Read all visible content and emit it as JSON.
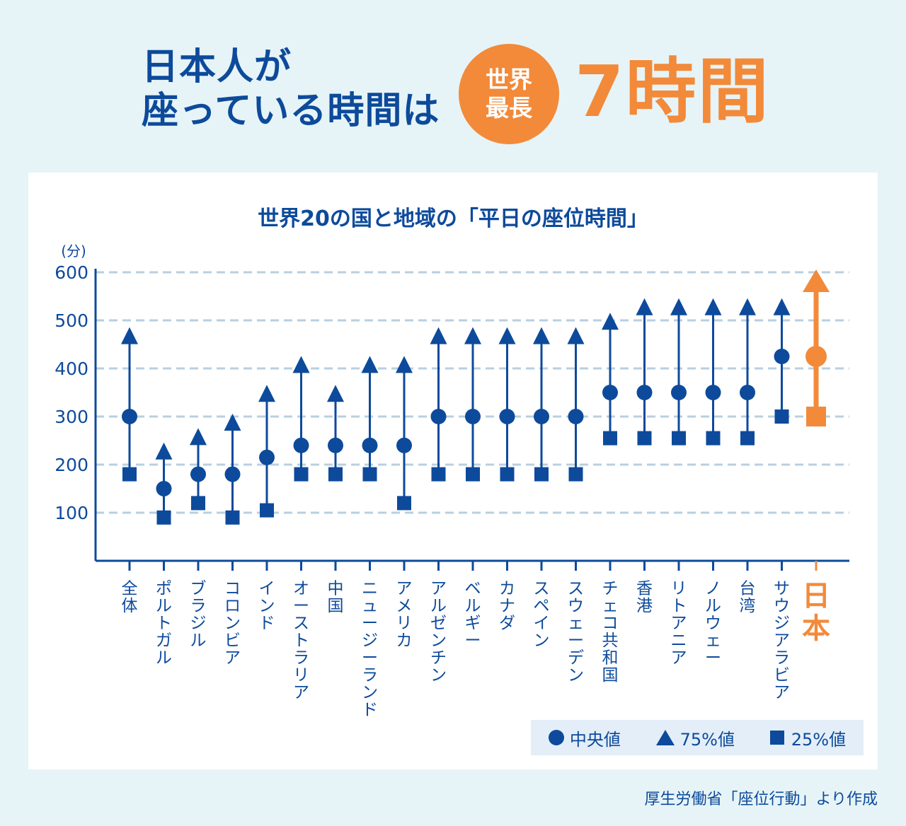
{
  "headline": {
    "line1": "日本人が",
    "line2": "座っている時間は",
    "badge_line1": "世界",
    "badge_line2": "最長",
    "hours": "7時間"
  },
  "colors": {
    "blue": "#0d4a9b",
    "orange": "#f28a3a",
    "grid": "#b9cfe0",
    "background": "#e6f4f7"
  },
  "chart_data": {
    "type": "range-dot",
    "title": "世界20の国と地域の「平日の座位時間」",
    "ylabel": "(分)",
    "ylim": [
      0,
      600
    ],
    "yticks": [
      100,
      200,
      300,
      400,
      500,
      600
    ],
    "grid": true,
    "highlight_category": "日本",
    "categories": [
      "全体",
      "ポルトガル",
      "ブラジル",
      "コロンビア",
      "インド",
      "オーストラリア",
      "中国",
      "ニュージーランド",
      "アメリカ",
      "アルゼンチン",
      "ベルギー",
      "カナダ",
      "スペイン",
      "スウェーデン",
      "チェコ共和国",
      "香港",
      "リトアニア",
      "ノルウェー",
      "台湾",
      "サウジアラビア",
      "日本"
    ],
    "series": [
      {
        "name": "中央値",
        "marker": "circle",
        "values": [
          300,
          150,
          180,
          180,
          215,
          240,
          240,
          240,
          240,
          300,
          300,
          300,
          300,
          300,
          350,
          350,
          350,
          350,
          350,
          425,
          425
        ]
      },
      {
        "name": "75%値",
        "marker": "triangle",
        "values": [
          480,
          240,
          270,
          300,
          360,
          420,
          360,
          420,
          420,
          480,
          480,
          480,
          480,
          480,
          510,
          540,
          540,
          540,
          540,
          540,
          600
        ]
      },
      {
        "name": "25%値",
        "marker": "square",
        "values": [
          180,
          90,
          120,
          90,
          105,
          180,
          180,
          180,
          120,
          180,
          180,
          180,
          180,
          180,
          255,
          255,
          255,
          255,
          255,
          300,
          300
        ]
      }
    ]
  },
  "legend": {
    "median": "中央値",
    "q75": "75%値",
    "q25": "25%値"
  },
  "source": "厚生労働省「座位行動」より作成"
}
